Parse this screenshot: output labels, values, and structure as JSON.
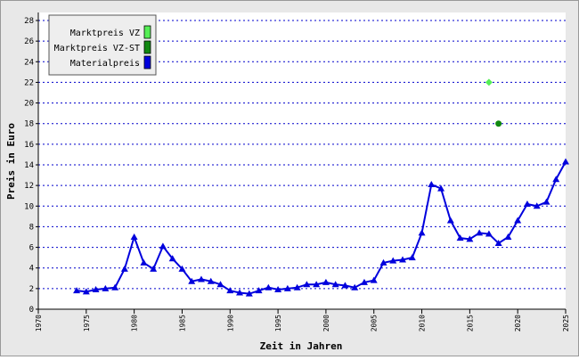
{
  "chart_data": {
    "type": "line",
    "xlabel": "Zeit in Jahren",
    "ylabel": "Preis in Euro",
    "xlim": [
      1970,
      2025
    ],
    "xticks": [
      1970,
      1975,
      1980,
      1985,
      1990,
      1995,
      2000,
      2005,
      2010,
      2015,
      2020,
      2025
    ],
    "ylim": [
      0,
      28
    ],
    "yticks": [
      0,
      2,
      4,
      6,
      8,
      10,
      12,
      14,
      16,
      18,
      20,
      22,
      24,
      26,
      28
    ],
    "grid": true,
    "legend": "upper left",
    "series": [
      {
        "name": "Marktpreis VZ",
        "color": "#55ee55",
        "marker": "diamond",
        "line": false,
        "x": [
          2017
        ],
        "values": [
          22
        ]
      },
      {
        "name": "Marktpreis VZ-ST",
        "color": "#118811",
        "marker": "circle",
        "line": false,
        "x": [
          2018
        ],
        "values": [
          18
        ]
      },
      {
        "name": "Materialpreis",
        "color": "#0000dd",
        "marker": "triangle",
        "line": true,
        "x": [
          1974,
          1975,
          1976,
          1977,
          1978,
          1979,
          1980,
          1981,
          1982,
          1983,
          1984,
          1985,
          1986,
          1987,
          1988,
          1989,
          1990,
          1991,
          1992,
          1993,
          1994,
          1995,
          1996,
          1997,
          1998,
          1999,
          2000,
          2001,
          2002,
          2003,
          2004,
          2005,
          2006,
          2007,
          2008,
          2009,
          2010,
          2011,
          2012,
          2013,
          2014,
          2015,
          2016,
          2017,
          2018,
          2019,
          2020,
          2021,
          2022,
          2023,
          2024,
          2025
        ],
        "values": [
          1.8,
          1.7,
          1.9,
          2.0,
          2.1,
          3.9,
          7.0,
          4.5,
          3.9,
          6.1,
          4.9,
          3.9,
          2.7,
          2.9,
          2.7,
          2.4,
          1.8,
          1.6,
          1.5,
          1.8,
          2.1,
          1.9,
          2.0,
          2.1,
          2.4,
          2.4,
          2.6,
          2.4,
          2.3,
          2.1,
          2.6,
          2.8,
          4.5,
          4.7,
          4.8,
          5.0,
          7.4,
          12.1,
          11.7,
          8.6,
          6.9,
          6.8,
          7.4,
          7.3,
          6.4,
          7.0,
          8.6,
          10.2,
          10.0,
          10.4,
          12.6,
          14.3
        ]
      }
    ]
  }
}
